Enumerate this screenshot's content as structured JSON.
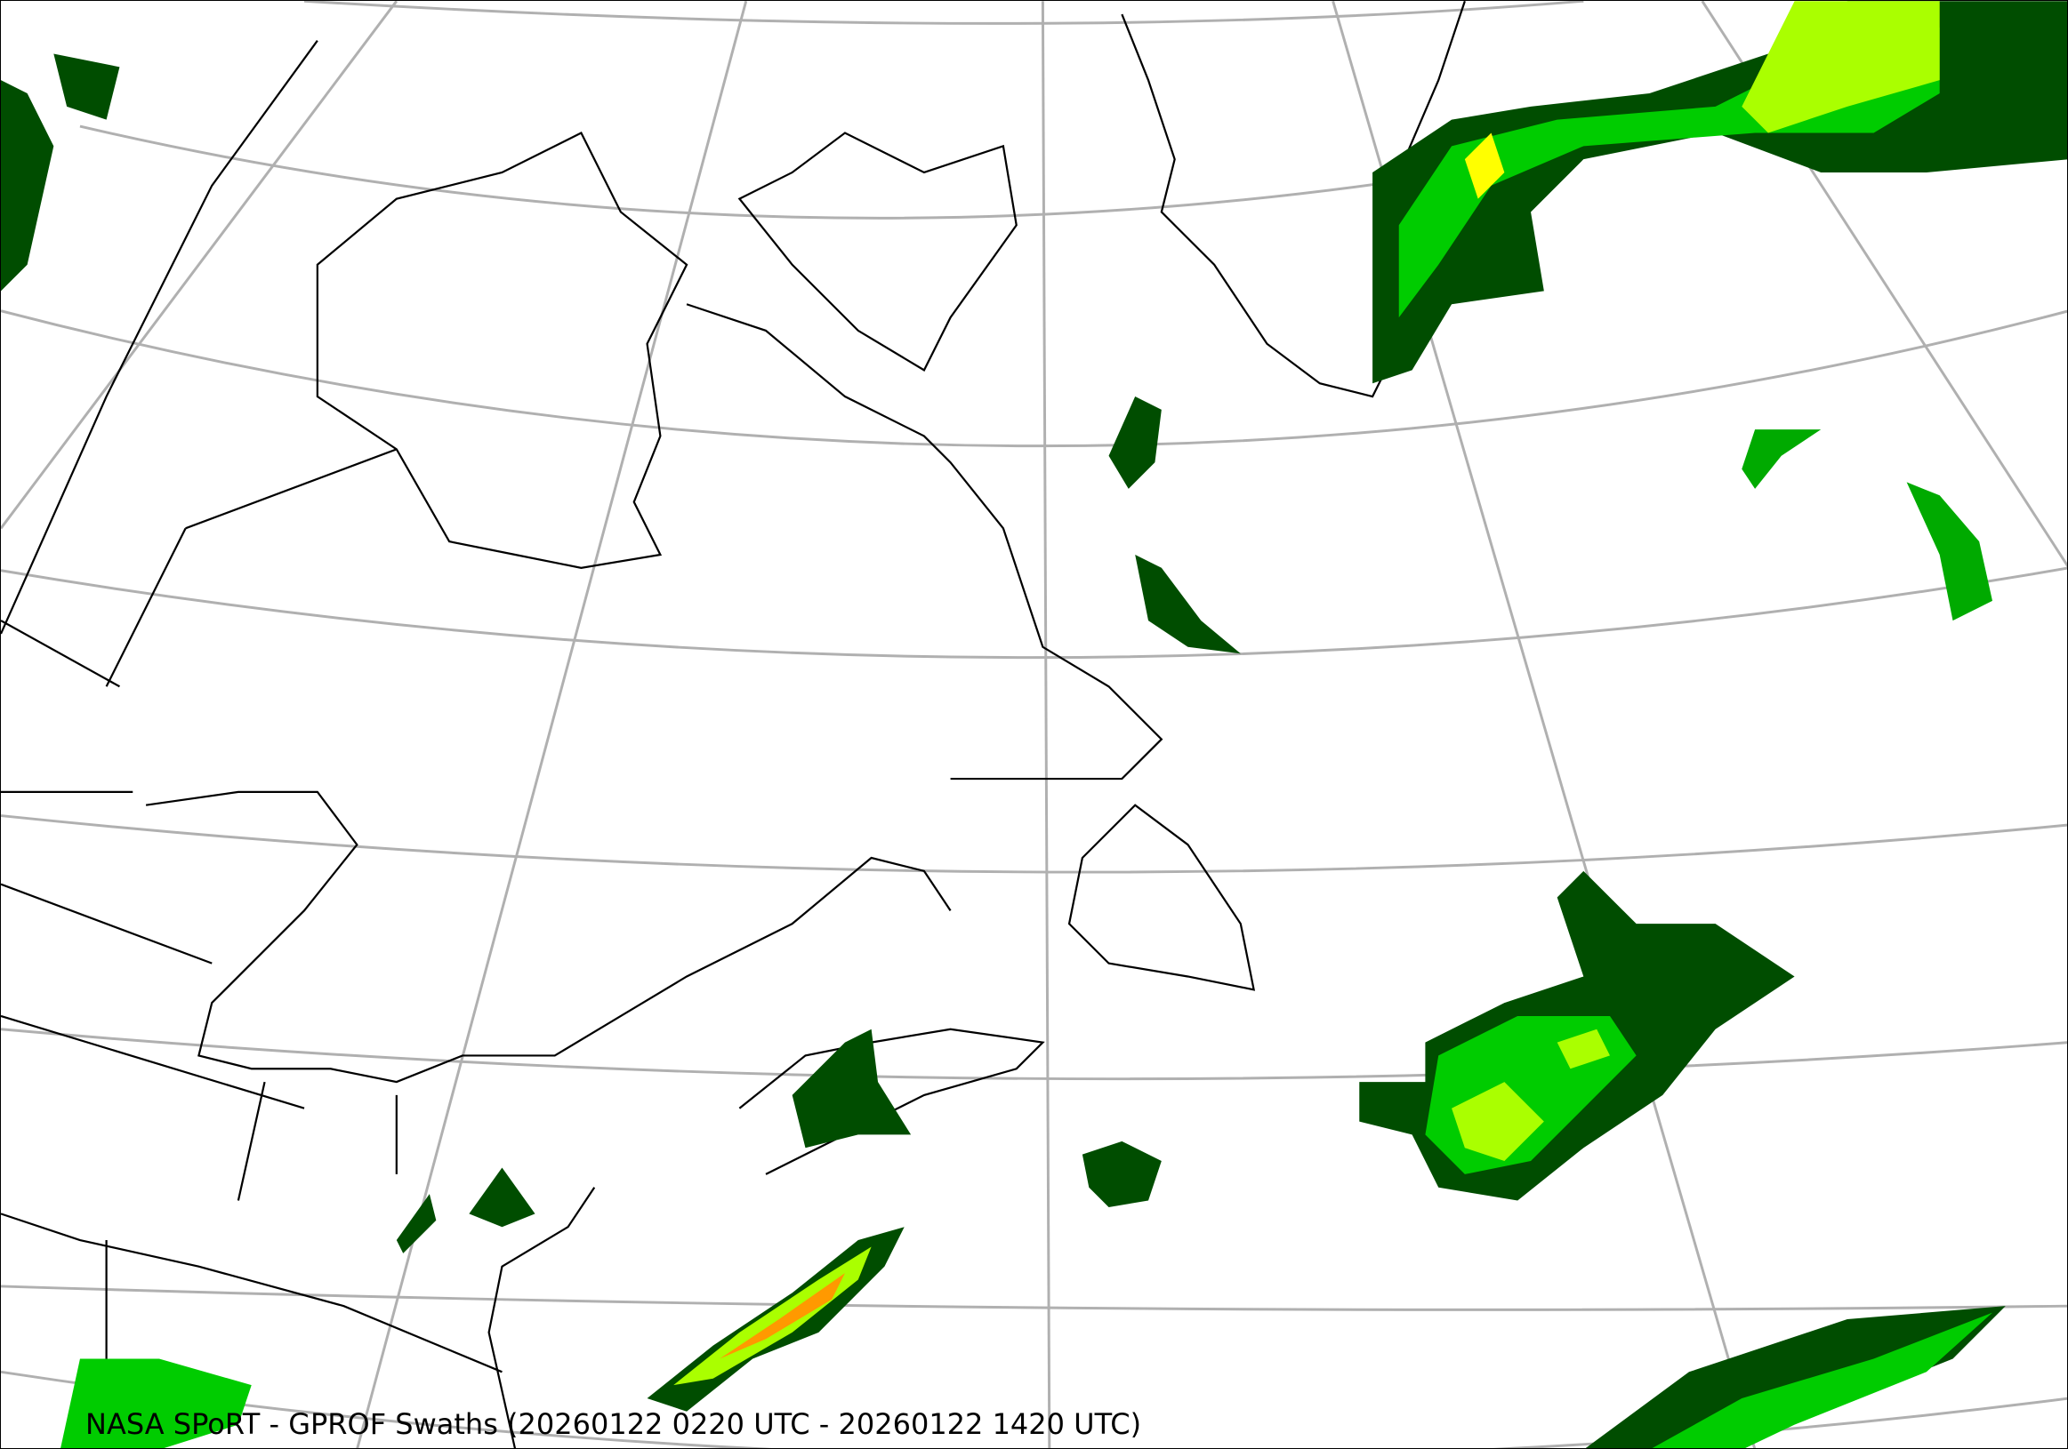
{
  "title": "NASA SPoRT - GPROF Swaths (20260122 0220 UTC - 20260122 1420 UTC)",
  "colors": {
    "graticule": "#b0b0b0",
    "coastline": "#000000",
    "precip_light": "#004d00",
    "precip_low": "#008800",
    "precip_mid": "#00cc00",
    "precip_high": "#aaff00",
    "precip_heavy": "#ffff00",
    "precip_extreme": "#ff9900"
  }
}
